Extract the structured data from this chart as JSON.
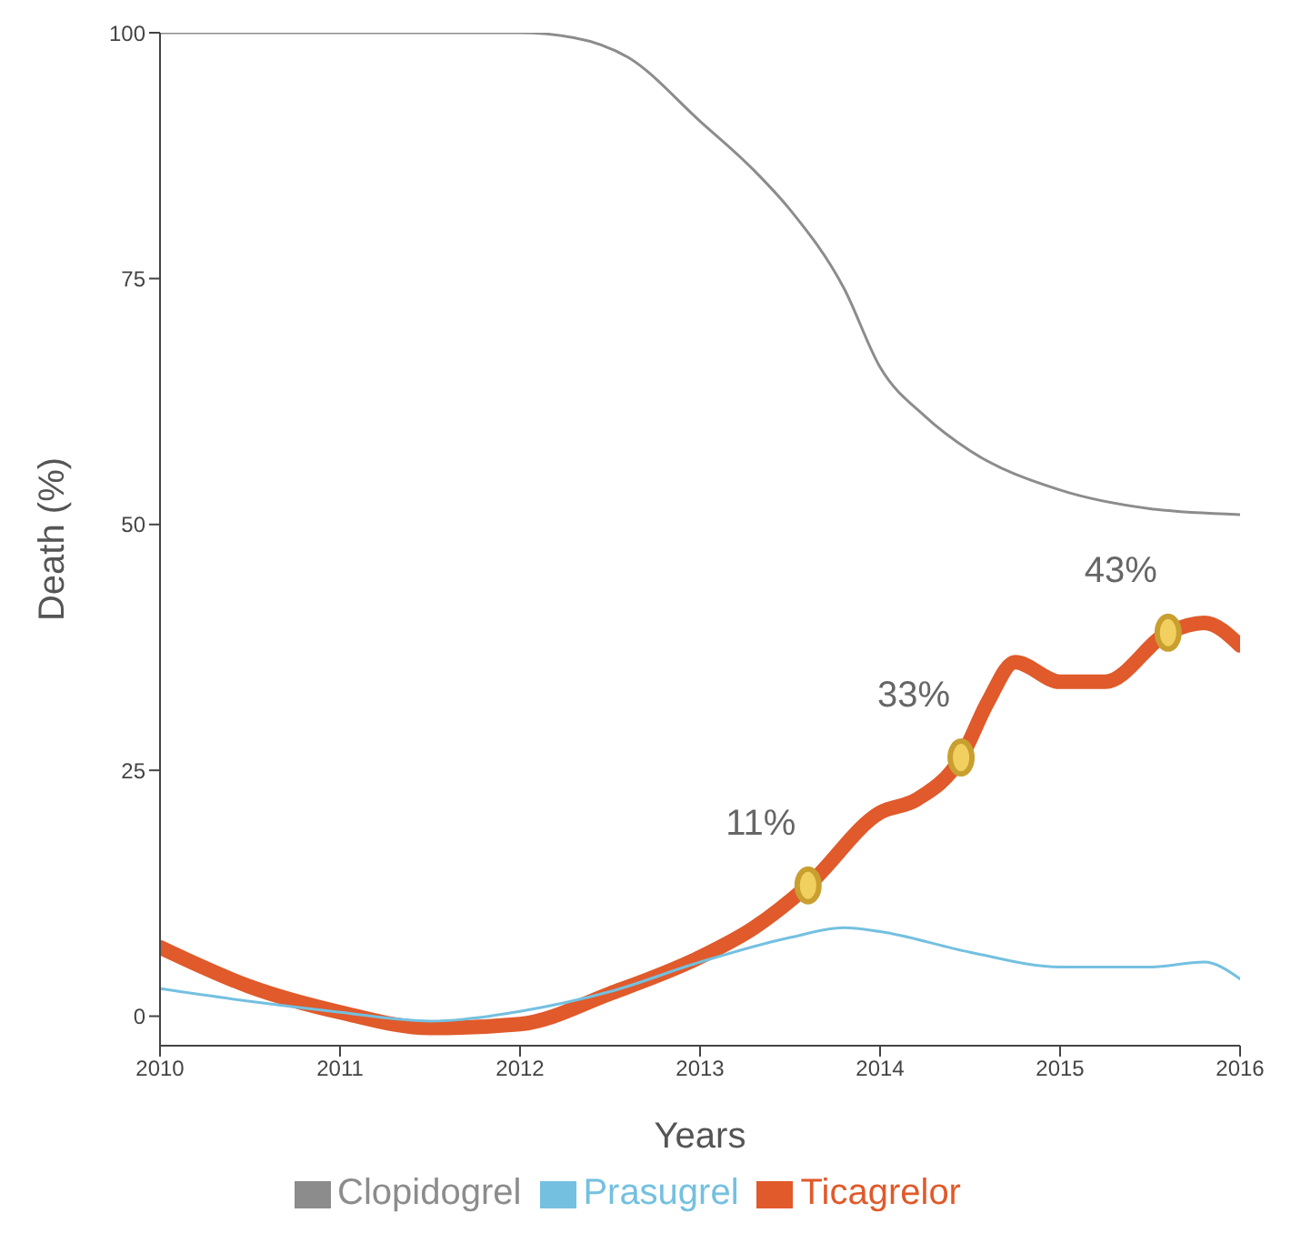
{
  "chart_data": {
    "type": "line",
    "xlabel": "Years",
    "ylabel": "Death (%)",
    "xlim": [
      2010,
      2016
    ],
    "xticks": [
      2010,
      2011,
      2012,
      2013,
      2014,
      2015,
      2016
    ],
    "ylim": [
      -3,
      100
    ],
    "yticks": [
      0,
      25,
      50,
      75,
      100
    ],
    "grid": false,
    "legend": "bottom",
    "marker": "none",
    "series": [
      {
        "name": "Ticagrelor",
        "color": "#e05a2b",
        "x": [
          2010,
          2010.5,
          2011,
          2011.5,
          2012,
          2012.5,
          2013,
          2013.3,
          2013.6,
          2014,
          2014.2,
          2014.45,
          2014.6,
          2014.75,
          2015,
          2015.25,
          2015.6,
          2015.8,
          2016
        ],
        "values": [
          7,
          3,
          0.4,
          -1.2,
          -0.8,
          2.3,
          6,
          9,
          13.3,
          20.7,
          22,
          26.3,
          32,
          36,
          34,
          34,
          39,
          40,
          37.7
        ]
      },
      {
        "name": "Clopidogrel",
        "color": "#8c8c8c",
        "x": [
          2010,
          2011,
          2012,
          2012.3,
          2012.6,
          2013,
          2013.3,
          2013.5,
          2013.8,
          2014,
          2014.25,
          2014.5,
          2015,
          2015.5,
          2016
        ],
        "values": [
          100,
          100,
          100,
          99.5,
          97.5,
          91,
          86,
          82,
          74,
          66,
          61,
          57.5,
          53.5,
          51.6,
          51
        ]
      },
      {
        "name": "Prasugrel",
        "color": "#74c0e0",
        "x": [
          2010,
          2010.5,
          2011,
          2011.5,
          2012,
          2012.5,
          2013,
          2013.5,
          2013.8,
          2014,
          2014.5,
          2015,
          2015.5,
          2015.8,
          2016
        ],
        "values": [
          2.8,
          1.5,
          0.4,
          -0.5,
          0.5,
          2.5,
          5.5,
          8,
          9,
          8.6,
          6.5,
          5,
          5,
          5.5,
          3.8
        ]
      }
    ],
    "annotations": [
      {
        "text": "11%",
        "x": 2013.6,
        "y": 13.3
      },
      {
        "text": "33%",
        "x": 2014.45,
        "y": 26.3
      },
      {
        "text": "43%",
        "x": 2015.6,
        "y": 39
      }
    ]
  }
}
